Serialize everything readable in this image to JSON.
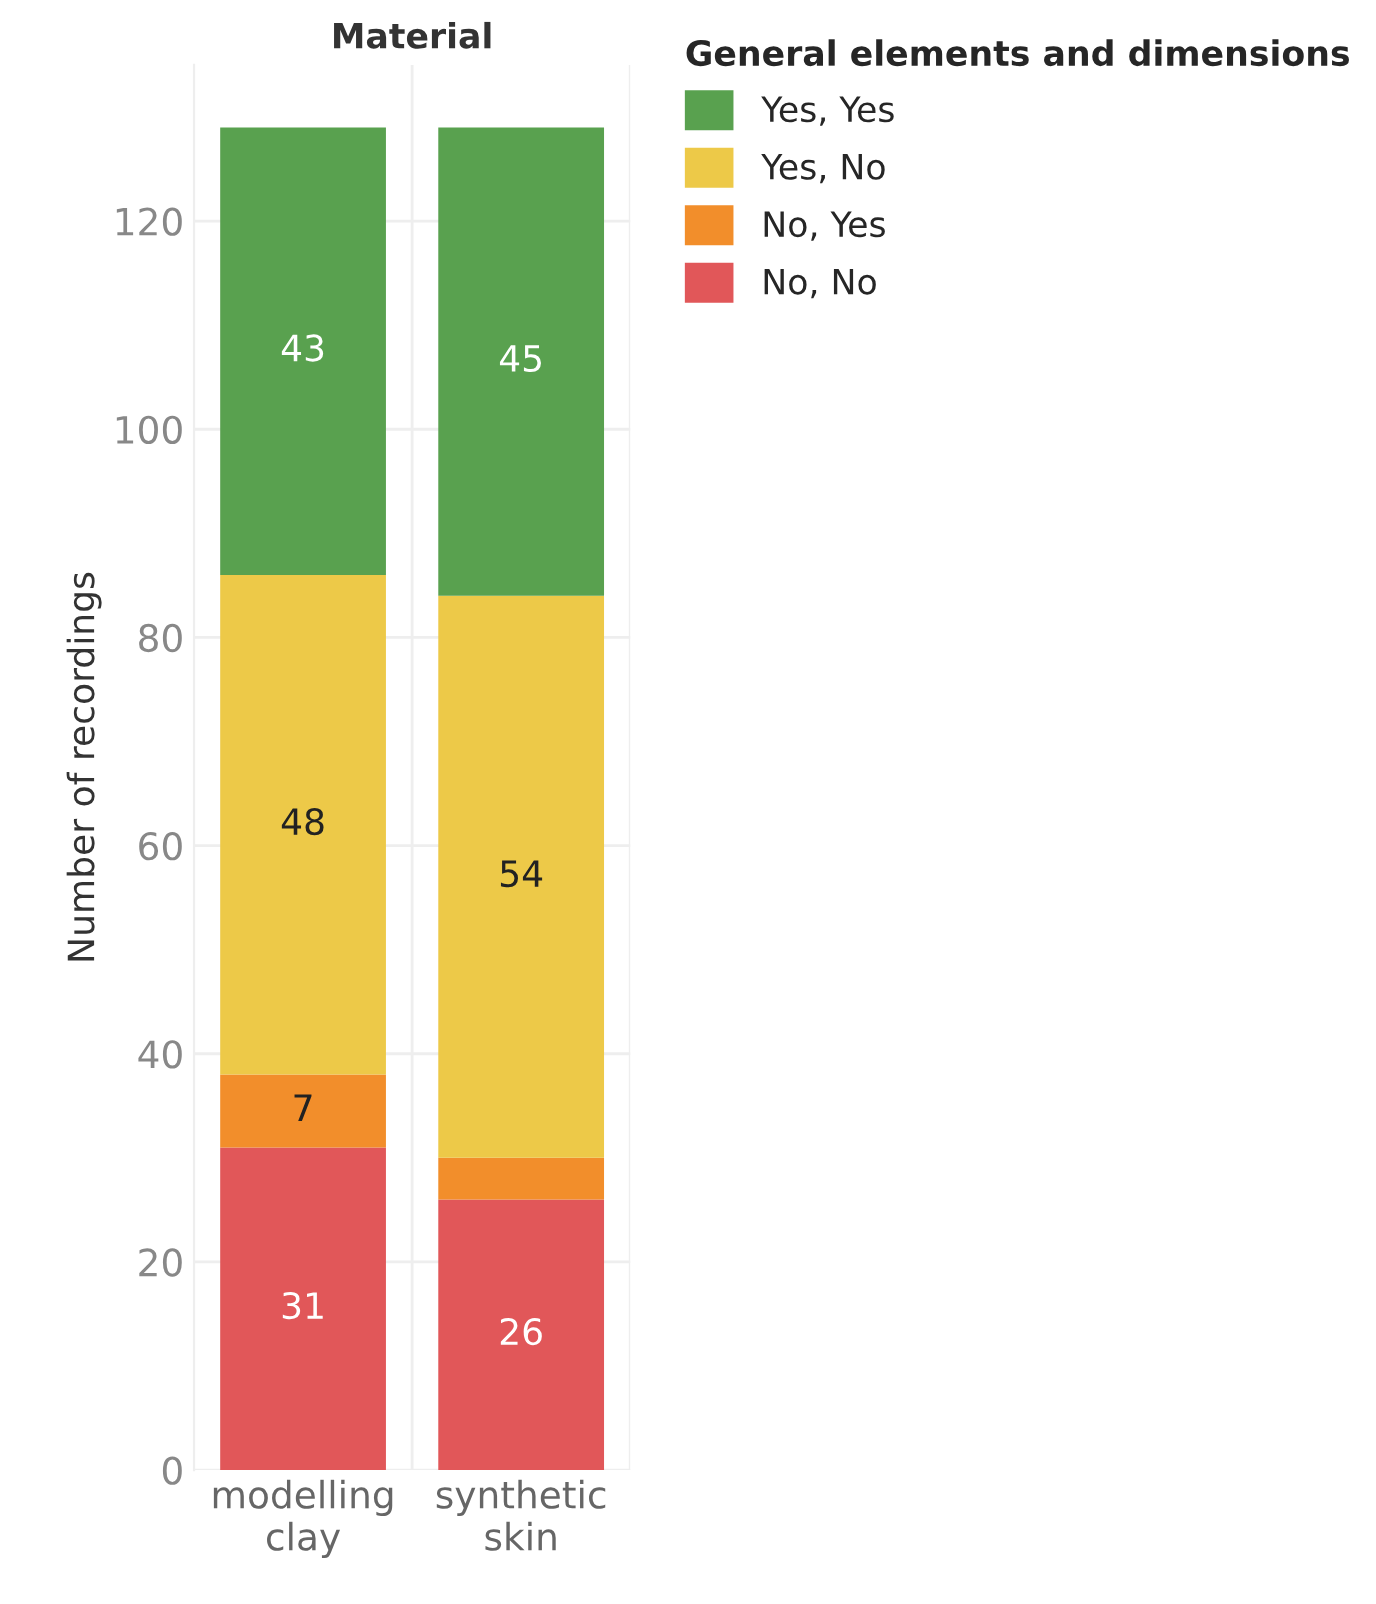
{
  "chart_data": {
    "type": "bar",
    "stacked": true,
    "title": "Material",
    "ylabel": "Number of recordings",
    "legend_title": "General elements and dimensions",
    "categories": [
      "modelling clay",
      "synthetic skin"
    ],
    "series": [
      {
        "name": "No, No",
        "color": "#e15759",
        "values": [
          31,
          26
        ],
        "value_labels": [
          "31",
          "26"
        ]
      },
      {
        "name": "No, Yes",
        "color": "#f28e2b",
        "values": [
          7,
          4
        ],
        "value_labels": [
          "7",
          null
        ]
      },
      {
        "name": "Yes, No",
        "color": "#edc948",
        "values": [
          48,
          54
        ],
        "value_labels": [
          "48",
          "54"
        ]
      },
      {
        "name": "Yes, Yes",
        "color": "#59a14f",
        "values": [
          43,
          45
        ],
        "value_labels": [
          "43",
          "45"
        ]
      }
    ],
    "ylim": [
      0,
      135
    ],
    "yticks": [
      0,
      20,
      40,
      60,
      80,
      100,
      120
    ],
    "grid": "y",
    "legend": "top right"
  }
}
